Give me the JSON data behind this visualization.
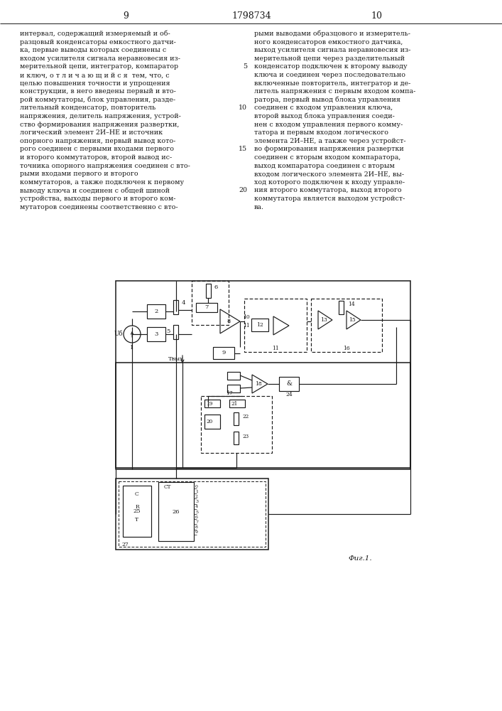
{
  "page_left": "9",
  "page_center": "1798734",
  "page_right": "10",
  "bg_color": "#ffffff",
  "text_color": "#1a1a1a",
  "font_size_body": 6.8,
  "font_size_page": 9.5,
  "col1_lines": [
    "интервал, содержащий измеряемый и об-",
    "разцовый конденсаторы емкостного датчи-",
    "ка, первые выводы которых соединены с",
    "входом усилителя сигнала неравновесия из-",
    "мерительной цепи, интегратор, компаратор",
    "и ключ, о т л и ч а ю щ и й с я  тем, что, с",
    "целью повышения точности и упрощения",
    "конструкции, в него введены первый и вто-",
    "рой коммутаторы, блок управления, разде-",
    "лительный конденсатор, повторитель",
    "напряжения, делитель напряжения, устрой-",
    "ство формирования напряжения развертки,",
    "логический элемент 2И–НЕ и источник",
    "опорного напряжения, первый вывод кото-",
    "рого соединен с первыми входами первого",
    "и второго коммутаторов, второй вывод ис-",
    "точника опорного напряжения соединен с вто-",
    "рыми входами первого и второго",
    "коммутаторов, а также подключен к первому",
    "выводу ключа и соединен с общей шиной",
    "устройства, выходы первого и второго ком-",
    "мутаторов соединены соответственно с вто-"
  ],
  "col2_lines": [
    "рыми выводами образцового и измеритель-",
    "ного конденсаторов емкостного датчика,",
    "выход усилителя сигнала неравновесия из-",
    "мерительной цепи через разделительный",
    "конденсатор подключен к второму выводу",
    "ключа и соединен через последовательно",
    "включенные повторитель, интегратор и де-",
    "литель напряжения с первым входом компа-",
    "ратора, первый вывод блока управления",
    "соединен с входом управления ключа,",
    "второй выход блока управления соеди-",
    "нен с входом управления первого комму-",
    "татора и первым входом логического",
    "элемента 2И–НЕ, а также через устройст-",
    "во формирования напряжения развертки",
    "соединен с вторым входом компаратора,",
    "выход компаратора соединен с вторым",
    "входом логического элемента 2И–НЕ, вы-",
    "ход которого подключен к входу управле-",
    "ния второго коммутатора, выход второго",
    "коммутатора является выходом устройст-",
    "ва."
  ],
  "line_numbers_at_rows": [
    4,
    9,
    14,
    19
  ],
  "line_number_vals": [
    "5",
    "10",
    "15",
    "20"
  ],
  "fig_caption": "Фиг.1."
}
